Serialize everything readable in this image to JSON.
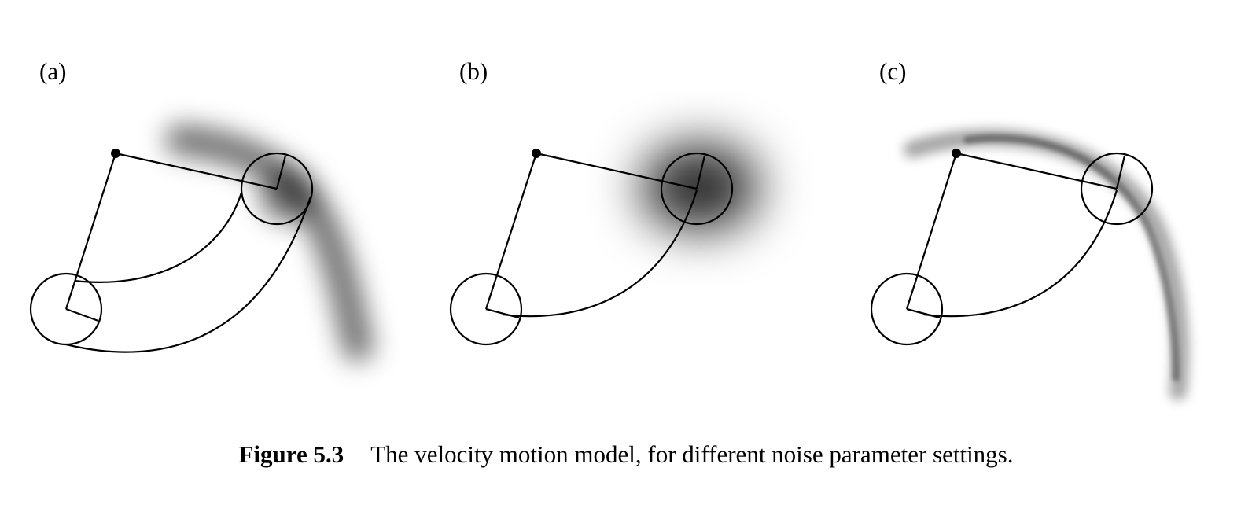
{
  "panels": [
    {
      "label": "(a)"
    },
    {
      "label": "(b)"
    },
    {
      "label": "(c)"
    }
  ],
  "caption": {
    "figure_number": "Figure 5.3",
    "text": "The velocity motion model, for different noise parameter settings."
  }
}
